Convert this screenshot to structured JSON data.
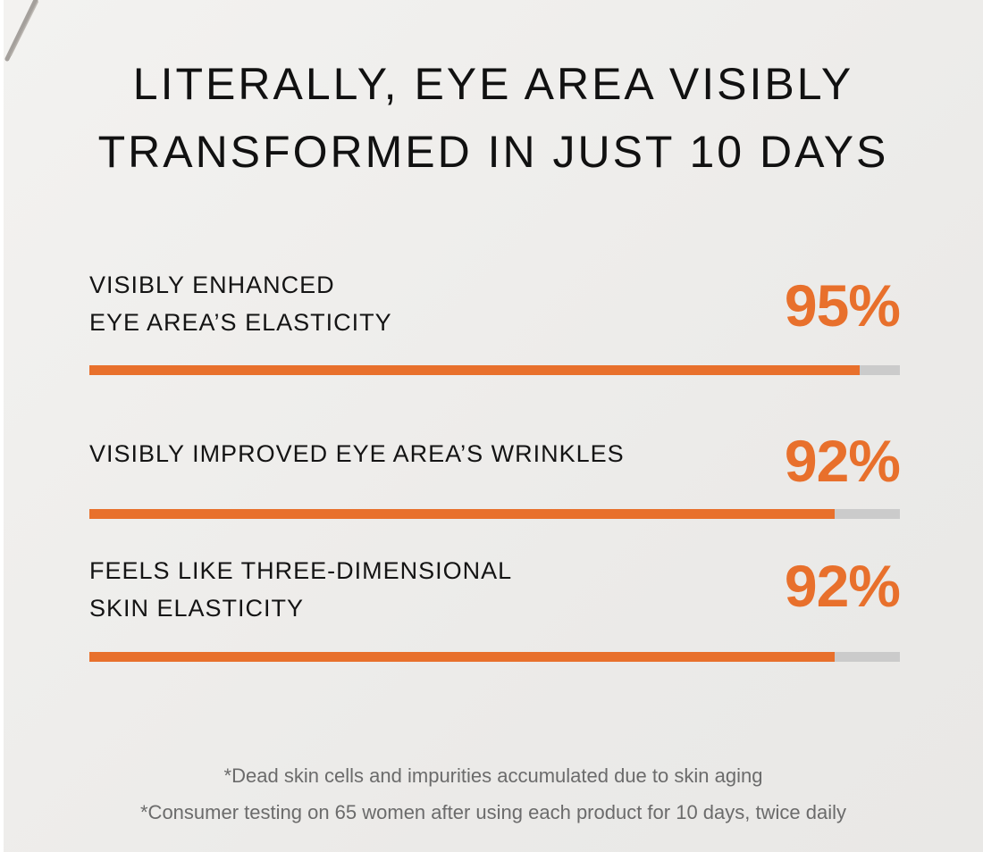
{
  "title": {
    "line1": "LITERALLY, EYE AREA VISIBLY",
    "line2": "TRANSFORMED IN JUST 10 DAYS"
  },
  "colors": {
    "accent": "#e8702c",
    "track": "#cbcbcb",
    "text": "#111111",
    "footnote": "#6b6b6b"
  },
  "chart_data": {
    "type": "bar",
    "orientation": "horizontal",
    "categories": [
      "VISIBLY ENHANCED EYE AREA'S ELASTICITY",
      "VISIBLY IMPROVED EYE AREA'S WRINKLES",
      "FEELS LIKE THREE-DIMENSIONAL SKIN ELASTICITY"
    ],
    "values": [
      95,
      92,
      92
    ],
    "unit": "%",
    "xlim": [
      0,
      100
    ],
    "grid": false,
    "legend": "none"
  },
  "metrics": [
    {
      "label_line1": "VISIBLY ENHANCED",
      "label_line2": "EYE AREA’S ELASTICITY",
      "value_text": "95%",
      "value": 95
    },
    {
      "label_line1": "VISIBLY IMPROVED EYE AREA’S WRINKLES",
      "label_line2": "",
      "value_text": "92%",
      "value": 92
    },
    {
      "label_line1": "FEELS LIKE THREE-DIMENSIONAL",
      "label_line2": "SKIN ELASTICITY",
      "value_text": "92%",
      "value": 92
    }
  ],
  "footnotes": [
    "*Dead skin cells and impurities accumulated due to skin aging",
    "*Consumer testing on 65 women after using each product for 10 days, twice daily"
  ]
}
